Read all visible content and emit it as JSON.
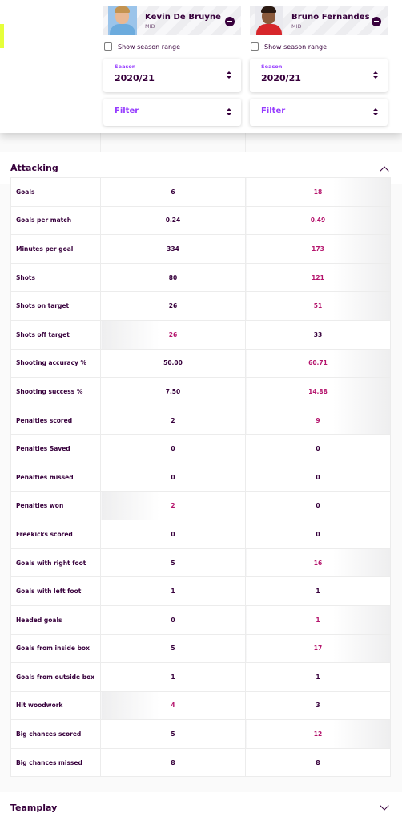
{
  "players": [
    {
      "name": "Kevin De Bruyne",
      "position": "MID",
      "show_range_label": "Show season range",
      "season_caption": "Season",
      "season_value": "2020/21",
      "filter_label": "Filter"
    },
    {
      "name": "Bruno Fernandes",
      "position": "MID",
      "show_range_label": "Show season range",
      "season_caption": "Season",
      "season_value": "2020/21",
      "filter_label": "Filter"
    }
  ],
  "sections": {
    "attacking": {
      "title": "Attacking",
      "state": "expanded"
    },
    "teamplay": {
      "title": "Teamplay",
      "state": "collapsed"
    }
  },
  "colors": {
    "primary": "#37003c",
    "accent": "#963cff",
    "winner": "#b5156d",
    "highlight_tab": "#e6ff3a"
  },
  "stats": [
    {
      "label": "Goals",
      "left": "6",
      "right": "18",
      "winner": "right"
    },
    {
      "label": "Goals per match",
      "left": "0.24",
      "right": "0.49",
      "winner": "right"
    },
    {
      "label": "Minutes per goal",
      "left": "334",
      "right": "173",
      "winner": "right"
    },
    {
      "label": "Shots",
      "left": "80",
      "right": "121",
      "winner": "right"
    },
    {
      "label": "Shots on target",
      "left": "26",
      "right": "51",
      "winner": "right"
    },
    {
      "label": "Shots off target",
      "left": "26",
      "right": "33",
      "winner": "left"
    },
    {
      "label": "Shooting accuracy %",
      "left": "50.00",
      "right": "60.71",
      "winner": "right"
    },
    {
      "label": "Shooting success %",
      "left": "7.50",
      "right": "14.88",
      "winner": "right"
    },
    {
      "label": "Penalties scored",
      "left": "2",
      "right": "9",
      "winner": "right"
    },
    {
      "label": "Penalties Saved",
      "left": "0",
      "right": "0",
      "winner": "none"
    },
    {
      "label": "Penalties missed",
      "left": "0",
      "right": "0",
      "winner": "none"
    },
    {
      "label": "Penalties won",
      "left": "2",
      "right": "0",
      "winner": "left"
    },
    {
      "label": "Freekicks scored",
      "left": "0",
      "right": "0",
      "winner": "none"
    },
    {
      "label": "Goals with right foot",
      "left": "5",
      "right": "16",
      "winner": "right"
    },
    {
      "label": "Goals with left foot",
      "left": "1",
      "right": "1",
      "winner": "none"
    },
    {
      "label": "Headed goals",
      "left": "0",
      "right": "1",
      "winner": "right"
    },
    {
      "label": "Goals from inside box",
      "left": "5",
      "right": "17",
      "winner": "right"
    },
    {
      "label": "Goals from outside box",
      "left": "1",
      "right": "1",
      "winner": "none"
    },
    {
      "label": "Hit woodwork",
      "left": "4",
      "right": "3",
      "winner": "left"
    },
    {
      "label": "Big chances scored",
      "left": "5",
      "right": "12",
      "winner": "right"
    },
    {
      "label": "Big chances missed",
      "left": "8",
      "right": "8",
      "winner": "none"
    }
  ]
}
